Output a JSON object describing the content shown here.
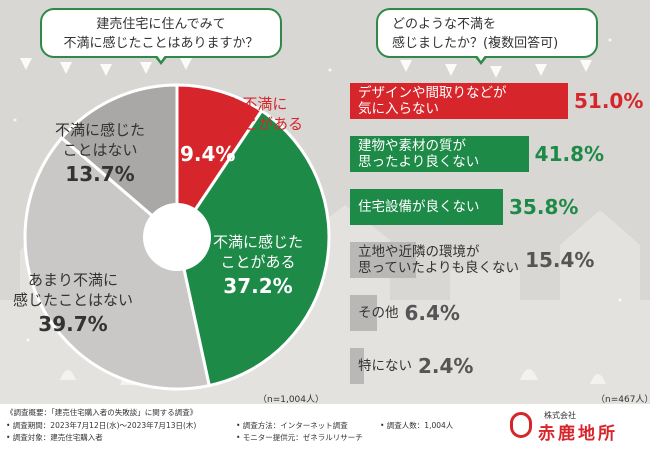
{
  "left_question": {
    "line1": "建売住宅に住んでみて",
    "line2": "不満に感じたことはありますか？"
  },
  "right_question": {
    "line1": "どのような不満を",
    "line2": "感じましたか？(複数回答可)"
  },
  "left_n": "（n=1,004人）",
  "right_n": "（n=467人）",
  "chart_data": [
    {
      "type": "pie",
      "slices": [
        {
          "label_lines": [
            "とても不満に",
            "感じたことがある"
          ],
          "value": 9.4,
          "display": "9.4%",
          "color": "#d7262b"
        },
        {
          "label_lines": [
            "不満に感じた",
            "ことがある"
          ],
          "value": 37.2,
          "display": "37.2%",
          "color": "#1e8a48"
        },
        {
          "label_lines": [
            "あまり不満に",
            "感じたことはない"
          ],
          "value": 39.7,
          "display": "39.7%",
          "color": "#c9c8c6"
        },
        {
          "label_lines": [
            "不満に感じた",
            "ことはない"
          ],
          "value": 13.7,
          "display": "13.7%",
          "color": "#a9a8a6"
        }
      ]
    },
    {
      "type": "bar",
      "xlim": [
        0,
        51.0
      ],
      "bars": [
        {
          "label_lines": [
            "デザインや間取りなどが",
            "気に入らない"
          ],
          "value": 51.0,
          "display": "51.0%",
          "color": "#d7262b",
          "text_color": "#ffffff",
          "pct_color": "#d7262b"
        },
        {
          "label_lines": [
            "建物や素材の質が",
            "思ったより良くない"
          ],
          "value": 41.8,
          "display": "41.8%",
          "color": "#1e8a48",
          "text_color": "#ffffff",
          "pct_color": "#1e8a48"
        },
        {
          "label_lines": [
            "住宅設備が良くない"
          ],
          "value": 35.8,
          "display": "35.8%",
          "color": "#1e8a48",
          "text_color": "#ffffff",
          "pct_color": "#1e8a48"
        },
        {
          "label_lines": [
            "立地や近隣の環境が",
            "思っていたよりも良くない"
          ],
          "value": 15.4,
          "display": "15.4%",
          "color": "#b9b8b6",
          "text_color": "#333333",
          "pct_color": "#555555"
        },
        {
          "label_lines": [
            "その他"
          ],
          "value": 6.4,
          "display": "6.4%",
          "color": "#b9b8b6",
          "text_color": "#333333",
          "pct_color": "#555555"
        },
        {
          "label_lines": [
            "特にない"
          ],
          "value": 2.4,
          "display": "2.4%",
          "color": "#b9b8b6",
          "text_color": "#333333",
          "pct_color": "#555555"
        }
      ]
    }
  ],
  "footer": {
    "overview": "《調査概要：「建売住宅購入者の失敗談」に関する調査》",
    "period": "• 調査期間：2023年7月12日(水)〜2023年7月13日(木)",
    "subject": "• 調査対象：建売住宅購入者",
    "method": "• 調査方法：インターネット調査",
    "provider": "• モニター提供元：ゼネラルリサーチ",
    "count": "• 調査人数：1,004人"
  },
  "logo": {
    "company_type": "株式会社",
    "brand": "赤鹿地所"
  }
}
